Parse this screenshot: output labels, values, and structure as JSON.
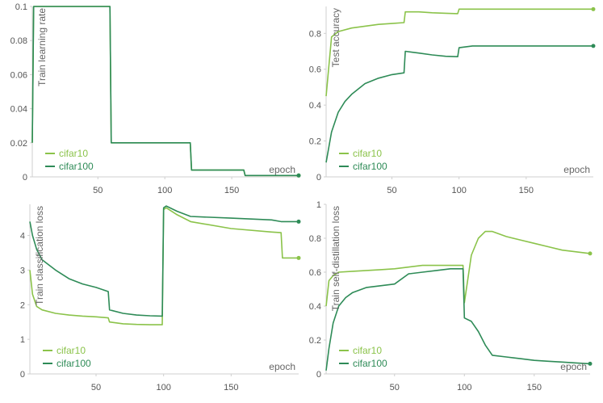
{
  "colors": {
    "cifar10": "#8bc34a",
    "cifar100": "#2e8b57",
    "axis": "#cfcfcf",
    "tick_text": "#555555",
    "label_text": "#666666"
  },
  "chart_data": [
    {
      "type": "line",
      "ylabel": "Train learning rate",
      "xlabel": "epoch",
      "xlim": [
        1,
        200
      ],
      "ylim": [
        0,
        0.1
      ],
      "xticks": [
        "50",
        "100",
        "150"
      ],
      "yticks": [
        "0",
        "0.02",
        "0.04",
        "0.06",
        "0.08",
        "0.1"
      ],
      "legend_position": "bottom-left",
      "series": [
        {
          "name": "cifar10",
          "x": [
            1,
            2,
            3,
            59,
            60,
            119,
            120,
            159,
            160,
            200
          ],
          "values": [
            0.02,
            0.1,
            0.1,
            0.1,
            0.02,
            0.02,
            0.004,
            0.004,
            0.0008,
            0.0008
          ]
        },
        {
          "name": "cifar100",
          "x": [
            1,
            2,
            3,
            59,
            60,
            119,
            120,
            159,
            160,
            200
          ],
          "values": [
            0.02,
            0.1,
            0.1,
            0.1,
            0.02,
            0.02,
            0.004,
            0.004,
            0.0008,
            0.0008
          ]
        }
      ]
    },
    {
      "type": "line",
      "ylabel": "Test accuracy",
      "xlabel": "epoch",
      "xlim": [
        1,
        200
      ],
      "ylim": [
        0,
        0.95
      ],
      "xticks": [
        "50",
        "100",
        "150"
      ],
      "yticks": [
        "0",
        "0.2",
        "0.4",
        "0.6",
        "0.8"
      ],
      "legend_position": "bottom-left",
      "series": [
        {
          "name": "cifar10",
          "x": [
            1,
            5,
            10,
            20,
            30,
            40,
            50,
            59,
            60,
            70,
            80,
            90,
            99,
            100,
            120,
            150,
            200
          ],
          "values": [
            0.45,
            0.78,
            0.81,
            0.83,
            0.84,
            0.85,
            0.855,
            0.86,
            0.92,
            0.92,
            0.915,
            0.912,
            0.91,
            0.935,
            0.935,
            0.935,
            0.935
          ]
        },
        {
          "name": "cifar100",
          "x": [
            1,
            5,
            10,
            15,
            20,
            30,
            40,
            50,
            59,
            60,
            70,
            80,
            90,
            99,
            100,
            110,
            150,
            200
          ],
          "values": [
            0.08,
            0.25,
            0.36,
            0.42,
            0.46,
            0.52,
            0.55,
            0.57,
            0.58,
            0.7,
            0.69,
            0.68,
            0.672,
            0.67,
            0.72,
            0.73,
            0.73,
            0.73
          ]
        }
      ]
    },
    {
      "type": "line",
      "ylabel": "Train classification loss",
      "xlabel": "epoch",
      "xlim": [
        1,
        200
      ],
      "ylim": [
        0,
        4.9
      ],
      "xticks": [
        "50",
        "100",
        "150"
      ],
      "yticks": [
        "0",
        "1",
        "2",
        "3",
        "4"
      ],
      "legend_position": "bottom-left",
      "series": [
        {
          "name": "cifar10",
          "x": [
            1,
            3,
            6,
            10,
            20,
            30,
            40,
            50,
            59,
            60,
            70,
            80,
            90,
            99,
            100,
            102,
            110,
            120,
            150,
            180,
            187,
            188,
            200
          ],
          "values": [
            3.0,
            2.3,
            1.95,
            1.85,
            1.75,
            1.7,
            1.67,
            1.65,
            1.62,
            1.5,
            1.45,
            1.43,
            1.42,
            1.42,
            4.75,
            4.8,
            4.6,
            4.4,
            4.2,
            4.1,
            4.08,
            3.35,
            3.35
          ]
        },
        {
          "name": "cifar100",
          "x": [
            1,
            3,
            6,
            10,
            20,
            30,
            40,
            50,
            59,
            60,
            70,
            80,
            90,
            99,
            100,
            102,
            110,
            120,
            150,
            180,
            187,
            200
          ],
          "values": [
            4.4,
            4.0,
            3.6,
            3.3,
            3.0,
            2.75,
            2.6,
            2.5,
            2.38,
            1.85,
            1.75,
            1.7,
            1.68,
            1.67,
            4.8,
            4.85,
            4.7,
            4.55,
            4.5,
            4.45,
            4.4,
            4.4
          ]
        }
      ]
    },
    {
      "type": "line",
      "ylabel": "Train self-distillation loss",
      "xlabel": "epoch",
      "xlim": [
        1,
        190
      ],
      "ylim": [
        0,
        1
      ],
      "xticks": [
        "50",
        "100",
        "150"
      ],
      "yticks": [
        "0",
        "0.2",
        "0.4",
        "0.6",
        "0.8",
        "1"
      ],
      "legend_position": "bottom-left",
      "series": [
        {
          "name": "cifar10",
          "x": [
            1,
            3,
            6,
            10,
            20,
            30,
            40,
            50,
            60,
            70,
            80,
            90,
            99,
            100,
            105,
            110,
            115,
            120,
            130,
            140,
            150,
            160,
            170,
            180,
            190
          ],
          "values": [
            0.4,
            0.55,
            0.58,
            0.6,
            0.605,
            0.61,
            0.615,
            0.62,
            0.63,
            0.64,
            0.64,
            0.64,
            0.64,
            0.42,
            0.7,
            0.8,
            0.84,
            0.84,
            0.81,
            0.79,
            0.77,
            0.75,
            0.73,
            0.72,
            0.71
          ]
        },
        {
          "name": "cifar100",
          "x": [
            1,
            3,
            6,
            10,
            15,
            20,
            30,
            40,
            50,
            60,
            70,
            80,
            90,
            99,
            100,
            105,
            110,
            115,
            120,
            130,
            140,
            150,
            160,
            170,
            180,
            190
          ],
          "values": [
            0.02,
            0.15,
            0.3,
            0.4,
            0.45,
            0.48,
            0.51,
            0.52,
            0.53,
            0.59,
            0.6,
            0.61,
            0.62,
            0.62,
            0.33,
            0.31,
            0.25,
            0.17,
            0.11,
            0.1,
            0.09,
            0.08,
            0.075,
            0.07,
            0.065,
            0.06
          ]
        }
      ]
    }
  ]
}
